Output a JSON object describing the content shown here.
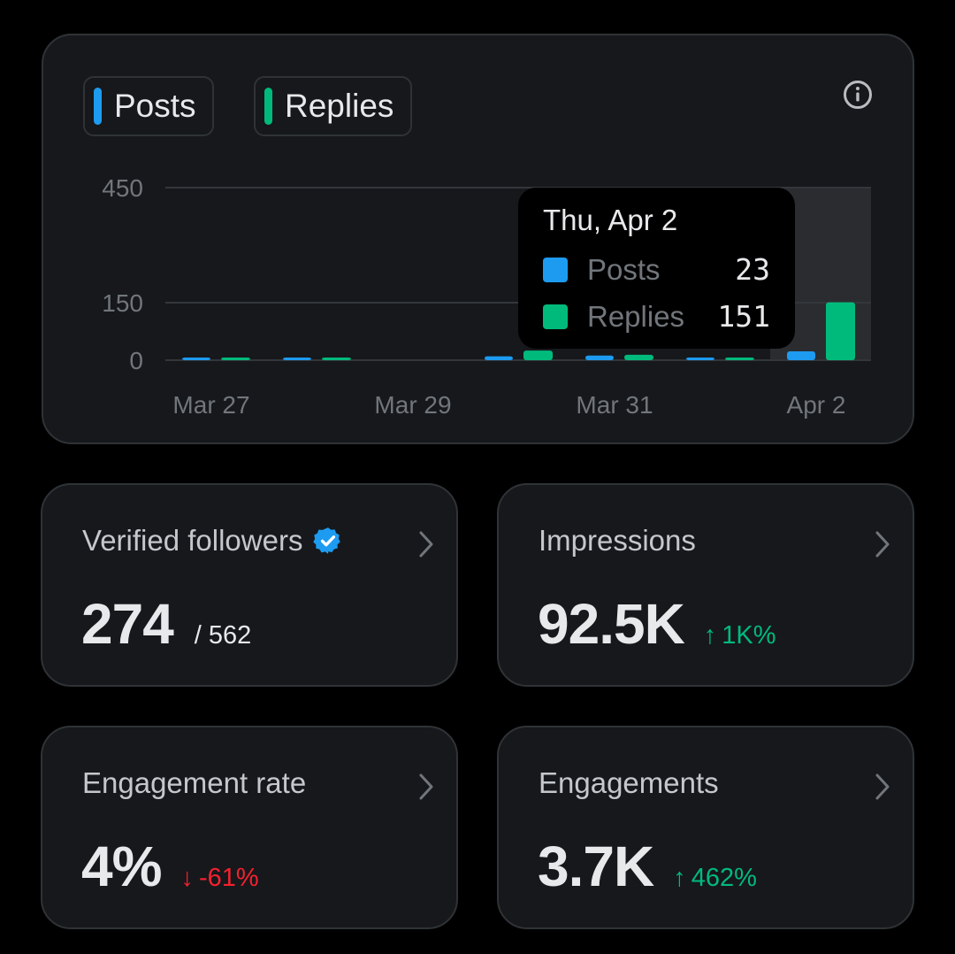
{
  "colors": {
    "posts": "#1d9bf0",
    "replies": "#00ba7c",
    "up": "#00ba7c",
    "down": "#f4212e"
  },
  "legend": {
    "posts_label": "Posts",
    "replies_label": "Replies"
  },
  "chart_data": {
    "type": "bar",
    "categories": [
      "Mar 27",
      "Mar 28",
      "Mar 29",
      "Mar 30",
      "Mar 31",
      "Apr 1",
      "Apr 2"
    ],
    "x_tick_labels": [
      "Mar 27",
      "Mar 29",
      "Mar 31",
      "Apr 2"
    ],
    "y_tick_labels": [
      "450",
      "150",
      "0"
    ],
    "y_ticks": [
      450,
      150,
      0
    ],
    "ylim": [
      0,
      450
    ],
    "series": [
      {
        "name": "Posts",
        "values": [
          1,
          1,
          0,
          10,
          12,
          7,
          23
        ]
      },
      {
        "name": "Replies",
        "values": [
          3,
          1,
          0,
          25,
          14,
          4,
          151
        ]
      }
    ],
    "highlighted_category": "Apr 2"
  },
  "tooltip": {
    "date": "Thu, Apr 2",
    "rows": [
      {
        "name": "Posts",
        "value": "23"
      },
      {
        "name": "Replies",
        "value": "151"
      }
    ]
  },
  "metrics": {
    "verified": {
      "title": "Verified followers",
      "value": "274",
      "sub": "/ 562"
    },
    "impressions": {
      "title": "Impressions",
      "value": "92.5K",
      "arrow": "↑",
      "change": "1K%"
    },
    "engagement_rate": {
      "title": "Engagement rate",
      "value": "4%",
      "arrow": "↓",
      "change": "-61%"
    },
    "engagements": {
      "title": "Engagements",
      "value": "3.7K",
      "arrow": "↑",
      "change": "462%"
    }
  }
}
